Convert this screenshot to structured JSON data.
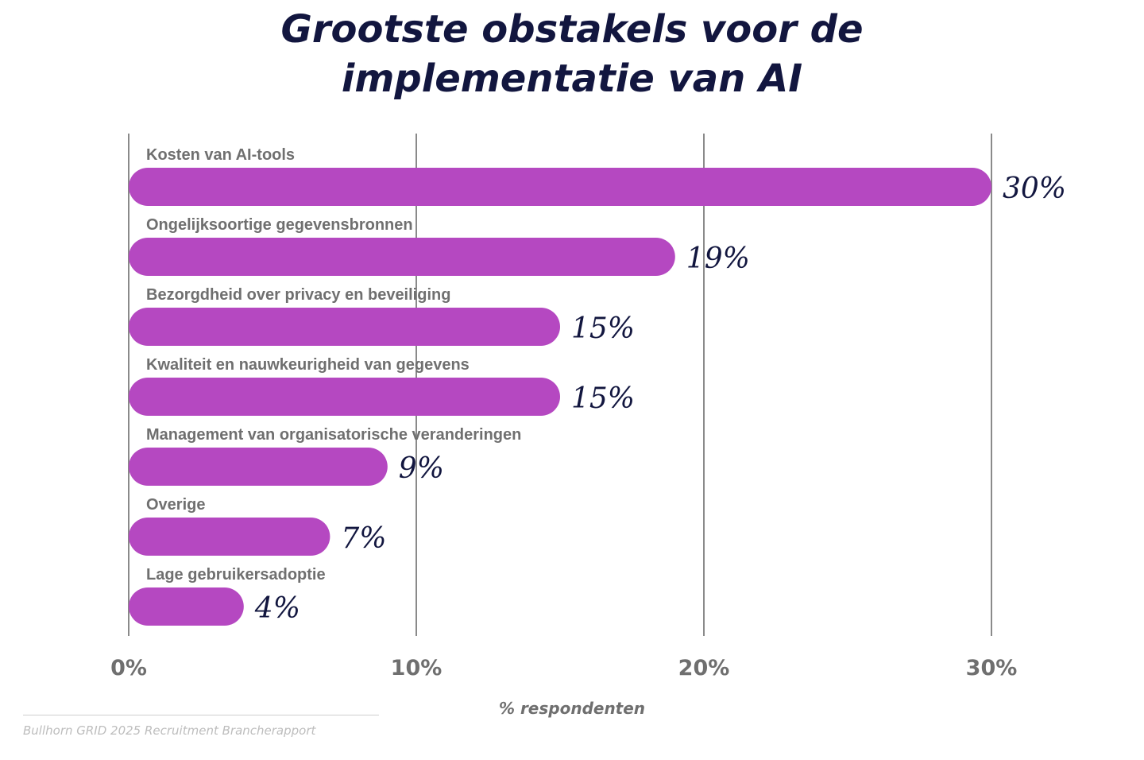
{
  "chart_data": {
    "type": "bar",
    "orientation": "horizontal",
    "title_lines": [
      "Grootste obstakels voor de",
      "implementatie van AI"
    ],
    "categories": [
      "Kosten van AI-tools",
      "Ongelijksoortige gegevensbronnen",
      "Bezorgdheid over privacy en beveiliging",
      "Kwaliteit en nauwkeurigheid van gegevens",
      "Management van organisatorische veranderingen",
      "Overige",
      "Lage gebruikersadoptie"
    ],
    "values": [
      30,
      19,
      15,
      15,
      9,
      7,
      4
    ],
    "value_labels": [
      "30%",
      "19%",
      "15%",
      "15%",
      "9%",
      "7%",
      "4%"
    ],
    "xlabel": "% respondenten",
    "xlim": [
      0,
      30
    ],
    "xticks": [
      0,
      10,
      20,
      30
    ],
    "xtick_labels": [
      "0%",
      "10%",
      "20%",
      "30%"
    ],
    "grid": true,
    "colors": {
      "bar": "#b548c1",
      "title": "#12163f",
      "value": "#12163f",
      "label": "#6f6f6f",
      "grid": "#8a8a8a"
    }
  },
  "source": "Bullhorn GRID 2025 Recruitment Brancherapport"
}
